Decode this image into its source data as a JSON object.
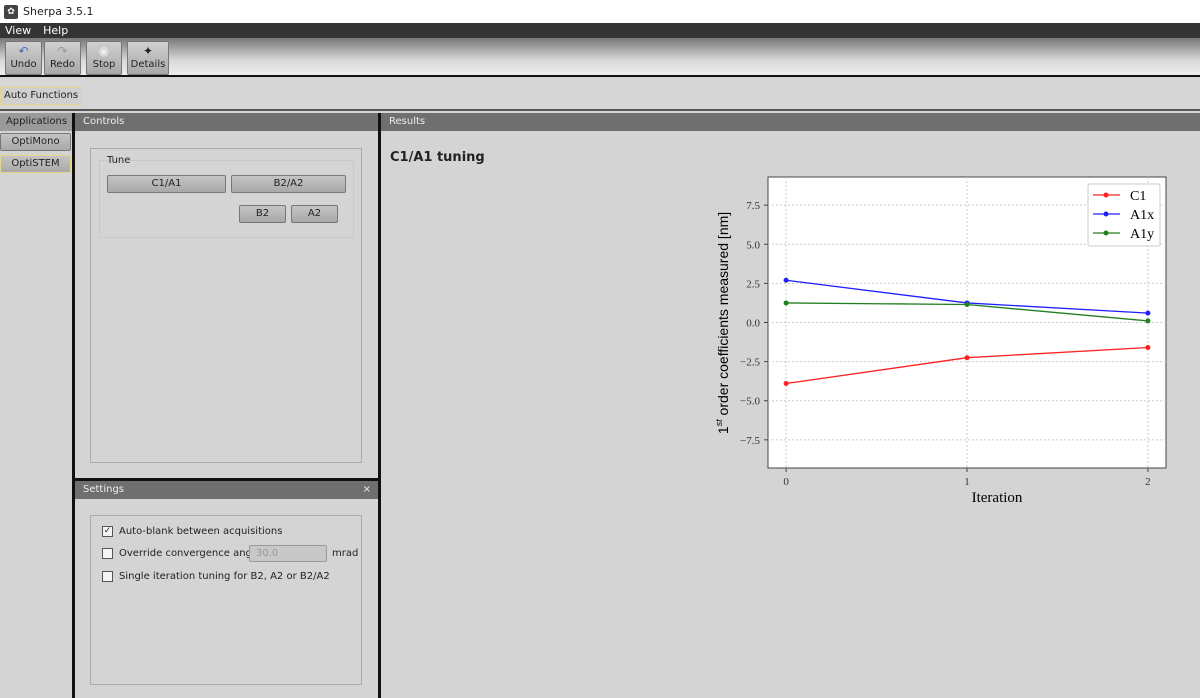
{
  "window": {
    "title": "Sherpa 3.5.1"
  },
  "menu": [
    "View",
    "Help"
  ],
  "toolbar": [
    {
      "label": "Undo",
      "icon": "undo-icon",
      "glyph": "↶"
    },
    {
      "label": "Redo",
      "icon": "redo-icon",
      "glyph": "↷"
    },
    {
      "label": "Stop",
      "icon": "stop-icon",
      "glyph": "◉"
    },
    {
      "label": "Details",
      "icon": "sparkle-icon",
      "glyph": "✦"
    }
  ],
  "auto_functions": "Auto Functions",
  "applications": {
    "header": "Applications",
    "items": [
      "OptiMono",
      "OptiSTEM"
    ]
  },
  "controls": {
    "header": "Controls",
    "group": "Tune",
    "buttons": {
      "c1a1": "C1/A1",
      "b2a2": "B2/A2",
      "b2": "B2",
      "a2": "A2"
    }
  },
  "settings": {
    "header": "Settings",
    "close": "×",
    "auto_blank": {
      "label": "Auto-blank between acquisitions",
      "checked": true
    },
    "override": {
      "label": "Override convergence angle",
      "checked": false,
      "value": "30.0",
      "unit": "mrad"
    },
    "single_iter": {
      "label": "Single iteration tuning for B2, A2 or B2/A2",
      "checked": false
    }
  },
  "results": {
    "header": "Results",
    "title": "C1/A1 tuning"
  },
  "chart_data": {
    "type": "line",
    "xlabel": "Iteration",
    "ylabel_main": "1",
    "ylabel_sup": "st",
    "ylabel_rest": " order coefficients measured [nm]",
    "x": [
      0,
      1,
      2
    ],
    "xticks": [
      "0",
      "1",
      "2"
    ],
    "yticks": [
      "−7.5",
      "−5.0",
      "−2.5",
      "0.0",
      "2.5",
      "5.0",
      "7.5"
    ],
    "ytick_values": [
      -7.5,
      -5,
      -2.5,
      0,
      2.5,
      5,
      7.5
    ],
    "xlim": [
      -0.1,
      2.1
    ],
    "ylim": [
      -9.3,
      9.3
    ],
    "grid": true,
    "legend": "top-right",
    "series": [
      {
        "name": "C1",
        "color": "#ff2020",
        "values": [
          -3.9,
          -2.25,
          -1.6
        ]
      },
      {
        "name": "A1x",
        "color": "#2020ff",
        "values": [
          2.7,
          1.25,
          0.6
        ]
      },
      {
        "name": "A1y",
        "color": "#208020",
        "values": [
          1.25,
          1.15,
          0.1
        ]
      }
    ]
  }
}
